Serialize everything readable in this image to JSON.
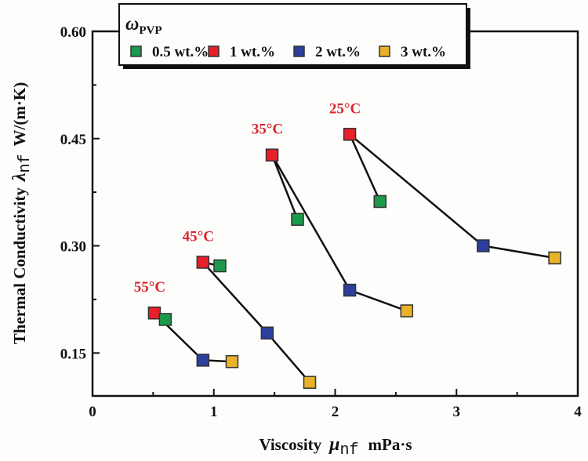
{
  "chart_data": {
    "type": "scatter",
    "title": "",
    "xlabel": {
      "main": "Viscosity",
      "symbol": "μ",
      "sub": "nf",
      "unit": "mPa·s"
    },
    "ylabel": {
      "main": "Thermal Conductivity",
      "symbol": "λ",
      "sub": "nf",
      "unit": "W/(m·K)"
    },
    "xlim": [
      0,
      4
    ],
    "ylim": [
      0.09,
      0.6
    ],
    "x_ticks": [
      "0",
      "1",
      "2",
      "3",
      "4"
    ],
    "y_ticks": [
      "0.15",
      "0.30",
      "0.45",
      "0.60"
    ],
    "legend": {
      "title_symbol": "ω",
      "title_sub": "PVP",
      "placement": "top",
      "entries": [
        "0.5 wt.%",
        "1 wt.%",
        "2 wt.%",
        "3 wt.%"
      ]
    },
    "colors": {
      "0.5 wt.%": "#1a9a4a",
      "1 wt.%": "#e8202a",
      "2 wt.%": "#2b3f9e",
      "3 wt.%": "#e8b22a",
      "label": "#d8262c"
    },
    "groups": [
      {
        "label": "25°C",
        "points": {
          "0.5 wt.%": [
            2.37,
            0.362
          ],
          "1 wt.%": [
            2.12,
            0.456
          ],
          "2 wt.%": [
            3.22,
            0.3
          ],
          "3 wt.%": [
            3.81,
            0.283
          ]
        }
      },
      {
        "label": "35°C",
        "points": {
          "0.5 wt.%": [
            1.69,
            0.337
          ],
          "1 wt.%": [
            1.48,
            0.427
          ],
          "2 wt.%": [
            2.12,
            0.238
          ],
          "3 wt.%": [
            2.59,
            0.209
          ]
        }
      },
      {
        "label": "45°C",
        "points": {
          "0.5 wt.%": [
            1.05,
            0.272
          ],
          "1 wt.%": [
            0.91,
            0.277
          ],
          "2 wt.%": [
            1.44,
            0.178
          ],
          "3 wt.%": [
            1.79,
            0.109
          ]
        }
      },
      {
        "label": "55°C",
        "points": {
          "0.5 wt.%": [
            0.6,
            0.197
          ],
          "1 wt.%": [
            0.51,
            0.206
          ],
          "2 wt.%": [
            0.91,
            0.14
          ],
          "3 wt.%": [
            1.15,
            0.138
          ]
        }
      }
    ]
  }
}
